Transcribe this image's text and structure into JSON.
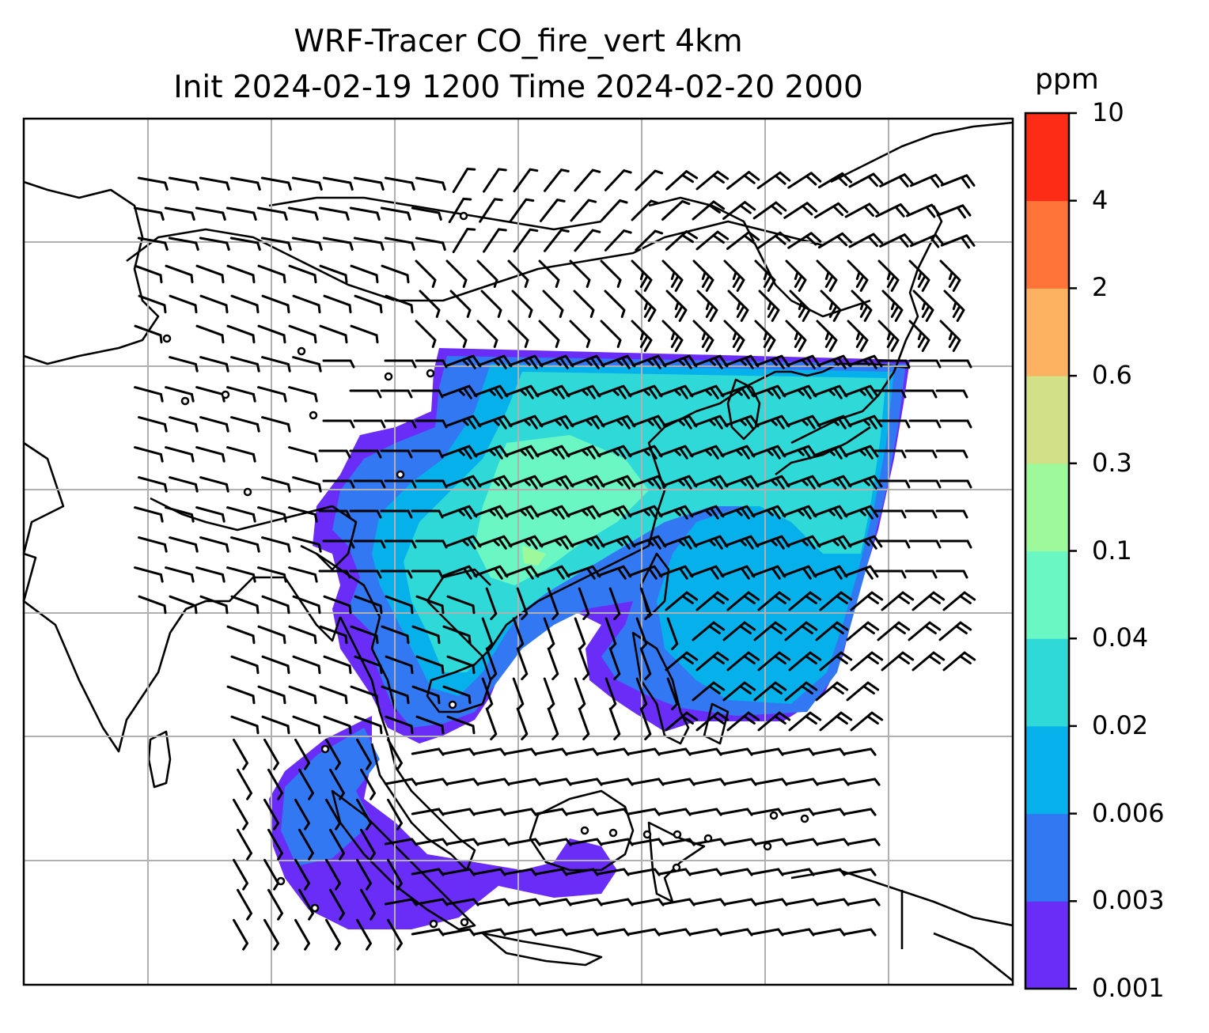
{
  "title": {
    "line1": "WRF-Tracer CO_fire_vert 4km",
    "line2": "Init 2024-02-19 1200 Time 2024-02-20 2000"
  },
  "colorbar": {
    "label": "ppm",
    "ticks": [
      "0.001",
      "0.003",
      "0.006",
      "0.02",
      "0.04",
      "0.1",
      "0.3",
      "0.6",
      "2",
      "4",
      "10"
    ],
    "colors": [
      "#6a2cf7",
      "#3378f3",
      "#06b0ea",
      "#2ed9d8",
      "#6af7c4",
      "#9ef99a",
      "#d2e188",
      "#fdb261",
      "#fe7338",
      "#fd2c17"
    ]
  },
  "map": {
    "gridlines": true,
    "coastlines": true,
    "wind_barbs": true,
    "plume_color_levels": [
      "0.003",
      "0.006",
      "0.02",
      "0.04",
      "0.1"
    ]
  }
}
